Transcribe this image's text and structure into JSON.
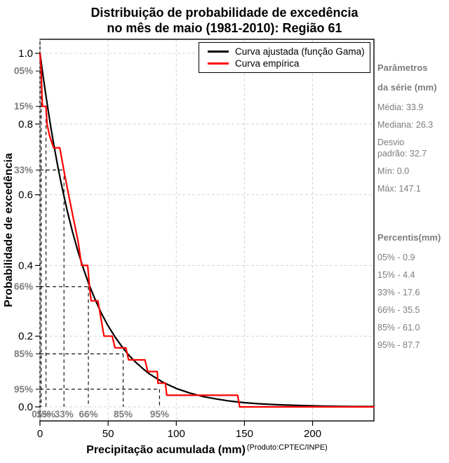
{
  "title": {
    "line1": "Distribuição de probabilidade de excedência",
    "line2": "no mês de maio (1981-2010): Região 61"
  },
  "axes": {
    "x_label": "Precipitação acumulada (mm)",
    "x_label_suffix": "(Produto:CPTEC/INPE)",
    "y_label": "Probabilidade de excedência",
    "x_ticks": [
      "0",
      "50",
      "100",
      "150",
      "200"
    ],
    "y_ticks": [
      "1.0",
      "0.8",
      "0.6",
      "0.4",
      "0.2",
      "0.0"
    ]
  },
  "legend": [
    {
      "label": "Curva ajustada (função Gama)",
      "color": "#000000"
    },
    {
      "label": "Curva empírica",
      "color": "#ff0000"
    }
  ],
  "panel": {
    "params_title1": "Parâmetros",
    "params_title2": "da série (mm)",
    "params": [
      "Média: 33.9",
      "Mediana: 26.3",
      "Desvio\npadrão: 32.7",
      "Mín: 0.0",
      "Máx: 147.1"
    ],
    "percentis_title": "Percentis(mm)",
    "percentis": [
      "05% - 0.9",
      "15% - 4.4",
      "33% - 17.6",
      "66% - 35.5",
      "85% - 61.0",
      "95% - 87.7"
    ]
  },
  "colors": {
    "fitted": "#000000",
    "empirical": "#ff0000",
    "grid": "#d4d4d4",
    "reference_dash": "#000000",
    "muted_text": "#7d7d7d"
  },
  "chart_data": {
    "type": "line",
    "title": "Distribuição de probabilidade de excedência no mês de maio (1981-2010): Região 61",
    "xlabel": "Precipitação acumulada (mm)",
    "ylabel": "Probabilidade de excedência",
    "xlim": [
      0,
      245
    ],
    "ylim": [
      0,
      1
    ],
    "grid": true,
    "legend_position": "top-right",
    "series": [
      {
        "name": "Curva ajustada (função Gama)",
        "color": "#000000",
        "x": [
          0,
          2,
          4,
          6,
          8,
          10,
          13,
          16,
          20,
          24,
          28,
          32,
          36,
          40,
          45,
          50,
          55,
          60,
          65,
          70,
          75,
          80,
          85,
          90,
          95,
          100,
          110,
          120,
          130,
          140,
          150,
          160,
          175,
          190,
          210,
          230,
          245
        ],
        "y": [
          1,
          0.943,
          0.889,
          0.838,
          0.79,
          0.745,
          0.681,
          0.624,
          0.554,
          0.493,
          0.438,
          0.389,
          0.346,
          0.308,
          0.265,
          0.229,
          0.198,
          0.171,
          0.147,
          0.127,
          0.11,
          0.094,
          0.082,
          0.07,
          0.061,
          0.052,
          0.039,
          0.029,
          0.022,
          0.016,
          0.012,
          0.009,
          0.006,
          0.004,
          0.002,
          0.001,
          0.001
        ]
      },
      {
        "name": "Curva empírica",
        "color": "#ff0000",
        "x": [
          0,
          0.9,
          1.3,
          1.8,
          4.4,
          5.2,
          7,
          10,
          14.5,
          17.6,
          21,
          24.5,
          28,
          30.5,
          35,
          36.5,
          37.5,
          42.5,
          45.5,
          47,
          53,
          55,
          63,
          65,
          77,
          79,
          86,
          86.5,
          92,
          93,
          145,
          146.5,
          245
        ],
        "y": [
          1,
          0.95,
          0.9,
          0.85,
          0.85,
          0.8,
          0.767,
          0.733,
          0.733,
          0.667,
          0.6,
          0.533,
          0.467,
          0.4,
          0.4,
          0.333,
          0.3,
          0.3,
          0.233,
          0.2,
          0.2,
          0.167,
          0.167,
          0.133,
          0.133,
          0.1,
          0.1,
          0.067,
          0.067,
          0.033,
          0.033,
          0,
          0
        ]
      }
    ],
    "percentile_markers": [
      {
        "label": "05%",
        "x": 0.9,
        "p": 0.95
      },
      {
        "label": "15%",
        "x": 4.4,
        "p": 0.85
      },
      {
        "label": "33%",
        "x": 17.6,
        "p": 0.67
      },
      {
        "label": "66%",
        "x": 35.5,
        "p": 0.34
      },
      {
        "label": "85%",
        "x": 61.0,
        "p": 0.15
      },
      {
        "label": "95%",
        "x": 87.7,
        "p": 0.05
      }
    ],
    "stats": {
      "media": 33.9,
      "mediana": 26.3,
      "desvio_padrao": 32.7,
      "min": 0.0,
      "max": 147.1
    }
  }
}
